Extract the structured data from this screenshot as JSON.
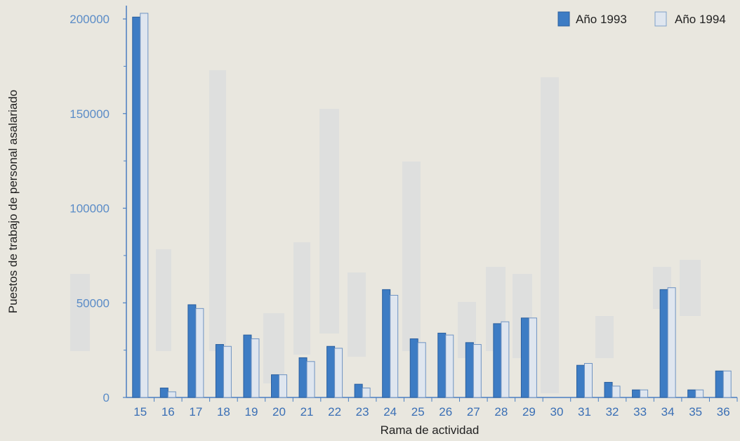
{
  "chart_data": {
    "type": "bar",
    "xlabel": "Rama de actividad",
    "ylabel": "Puestos de trabajo de personal asalariado",
    "ylim": [
      0,
      200000
    ],
    "yticks": [
      0,
      50000,
      100000,
      150000,
      200000
    ],
    "categories": [
      "15",
      "16",
      "17",
      "18",
      "19",
      "20",
      "21",
      "22",
      "23",
      "24",
      "25",
      "26",
      "27",
      "28",
      "29",
      "30",
      "31",
      "32",
      "33",
      "34",
      "35",
      "36"
    ],
    "series": [
      {
        "name": "Año 1993",
        "color": "#3d7cc4",
        "values": [
          201000,
          5000,
          49000,
          28000,
          33000,
          12000,
          21000,
          27000,
          7000,
          57000,
          31000,
          34000,
          29000,
          39000,
          42000,
          0,
          17000,
          8000,
          4000,
          57000,
          4000,
          14000
        ]
      },
      {
        "name": "Año 1994",
        "color": "#dfe6ef",
        "values": [
          203000,
          3000,
          47000,
          27000,
          31000,
          12000,
          19000,
          26000,
          5000,
          54000,
          29000,
          33000,
          28000,
          40000,
          42000,
          0,
          18000,
          6000,
          4000,
          58000,
          4000,
          14000
        ]
      }
    ],
    "legend": "top-right",
    "grid": false
  }
}
